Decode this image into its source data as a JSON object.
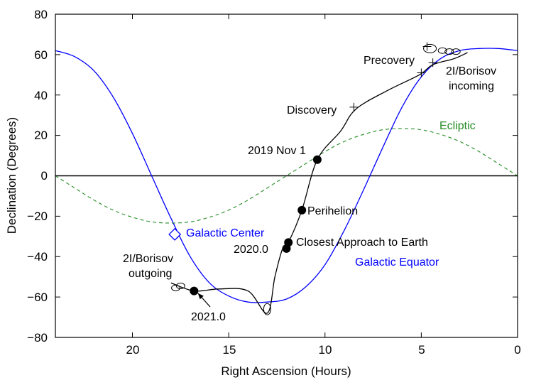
{
  "chart_data": {
    "type": "line",
    "title": "",
    "xlabel": "Right Ascension (Hours)",
    "ylabel": "Declination (Degrees)",
    "xlim": [
      24,
      0
    ],
    "ylim": [
      -80,
      80
    ],
    "xticks": [
      "20",
      "15",
      "10",
      "5",
      "0"
    ],
    "xtick_values": [
      20,
      15,
      10,
      5,
      0
    ],
    "yticks": [
      "80",
      "60",
      "40",
      "20",
      "0",
      "−20",
      "−40",
      "−60",
      "−80"
    ],
    "ytick_values": [
      80,
      60,
      40,
      20,
      0,
      -20,
      -40,
      -60,
      -80
    ],
    "series": [
      {
        "name": "Galactic Equator",
        "color": "#0000ff",
        "style": "solid",
        "x": [
          24,
          23,
          22,
          21,
          20,
          19,
          18,
          17,
          16,
          15,
          14,
          13,
          12,
          11,
          10,
          9,
          8,
          7,
          6,
          5,
          4,
          3,
          2,
          1,
          0
        ],
        "y": [
          62,
          59,
          52,
          39,
          21,
          0,
          -21,
          -40,
          -53,
          -59.5,
          -62.5,
          -62.5,
          -61,
          -55,
          -44,
          -27,
          -7,
          14,
          34,
          49,
          58,
          62,
          63,
          63,
          62
        ]
      },
      {
        "name": "Ecliptic",
        "color": "#228b22",
        "style": "dashed",
        "x": [
          24,
          23,
          22,
          21,
          20,
          19,
          18,
          17,
          16,
          15,
          14,
          13,
          12,
          11,
          10,
          9,
          8,
          7,
          6,
          5,
          4,
          3,
          2,
          1,
          0
        ],
        "y": [
          0,
          -6,
          -12,
          -17,
          -20.5,
          -22.8,
          -23.4,
          -22.8,
          -20.5,
          -17,
          -12,
          -6,
          0,
          6,
          12,
          17,
          20.5,
          22.8,
          23.4,
          22.8,
          20.5,
          17,
          12,
          6,
          0
        ]
      },
      {
        "name": "2I/Borisov trajectory",
        "color": "#000000",
        "style": "solid",
        "x": [
          2.6,
          3.3,
          4.4,
          5.1,
          6.8,
          8.4,
          9.2,
          10.4,
          11.2,
          11.9,
          12.2,
          12.6,
          13.0,
          14.0,
          15.5,
          16.8,
          18.0
        ],
        "y": [
          61,
          58,
          55,
          50,
          42,
          33,
          22,
          8,
          -17,
          -33,
          -36,
          -50,
          -68,
          -57,
          -56,
          -57,
          -53
        ]
      }
    ],
    "horizontal_line": {
      "y": 0,
      "color": "#000000"
    },
    "points": [
      {
        "label": "2019 Nov 1",
        "x": 10.4,
        "y": 8,
        "marker": "dot"
      },
      {
        "label": "Perihelion",
        "x": 11.2,
        "y": -17,
        "marker": "dot"
      },
      {
        "label": "Closest Approach to Earth",
        "x": 11.9,
        "y": -33,
        "marker": "dot"
      },
      {
        "label": "2020.0",
        "x": 12.0,
        "y": -36,
        "marker": "dot"
      },
      {
        "label": "2021.0",
        "x": 16.8,
        "y": -57,
        "marker": "dot"
      },
      {
        "label": "Discovery",
        "x": 8.5,
        "y": 34,
        "marker": "plus"
      },
      {
        "label": "Precovery",
        "x": 4.7,
        "y": 64,
        "marker": "plus"
      }
    ],
    "annotations": {
      "galactic_center": "Galactic Center",
      "galactic_equator": "Galactic Equator",
      "ecliptic": "Ecliptic",
      "borisov_incoming_1": "2I/Borisov",
      "borisov_incoming_2": "incoming",
      "borisov_outgoing_1": "2I/Borisov",
      "borisov_outgoing_2": "outgoing"
    },
    "galactic_center_point": {
      "x": 17.8,
      "y": -29
    },
    "colors": {
      "galactic": "#0000ff",
      "ecliptic": "#228b22",
      "trajectory": "#000000"
    }
  }
}
